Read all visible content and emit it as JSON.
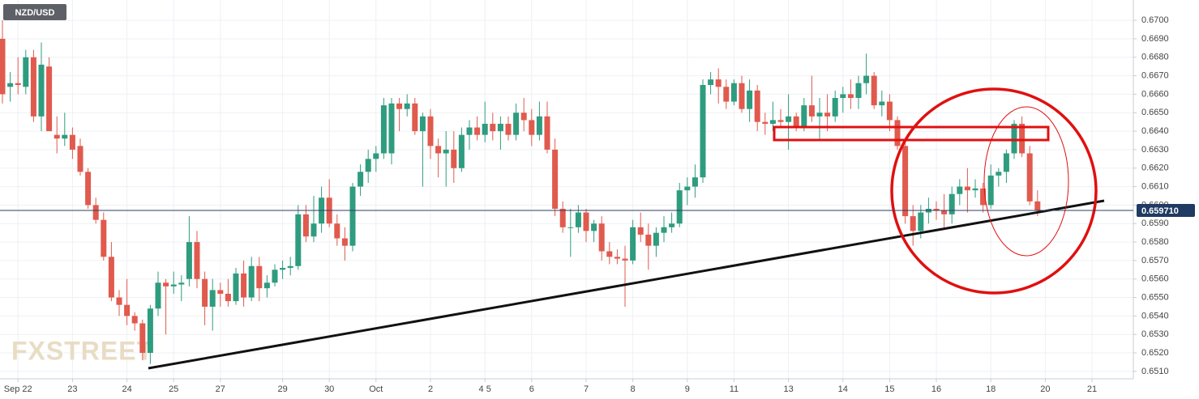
{
  "chart_data": {
    "type": "candlestick",
    "title": "NZD/USD",
    "watermark": "FXSTREET",
    "up_color": "#2f9c7f",
    "down_color": "#e05a4e",
    "grid": true,
    "ylim": [
      0.6506,
      0.6711
    ],
    "yticks": [
      {
        "value": 0.651,
        "label": "0.6510"
      },
      {
        "value": 0.652,
        "label": "0.6520"
      },
      {
        "value": 0.653,
        "label": "0.6530"
      },
      {
        "value": 0.654,
        "label": "0.6540"
      },
      {
        "value": 0.655,
        "label": "0.6550"
      },
      {
        "value": 0.656,
        "label": "0.6560"
      },
      {
        "value": 0.657,
        "label": "0.6570"
      },
      {
        "value": 0.658,
        "label": "0.6580"
      },
      {
        "value": 0.659,
        "label": "0.6590"
      },
      {
        "value": 0.66,
        "label": "0.6600"
      },
      {
        "value": 0.661,
        "label": "0.6610"
      },
      {
        "value": 0.662,
        "label": "0.6620"
      },
      {
        "value": 0.663,
        "label": "0.6630"
      },
      {
        "value": 0.664,
        "label": "0.6640"
      },
      {
        "value": 0.665,
        "label": "0.6650"
      },
      {
        "value": 0.666,
        "label": "0.6660"
      },
      {
        "value": 0.667,
        "label": "0.6670"
      },
      {
        "value": 0.668,
        "label": "0.6680"
      },
      {
        "value": 0.669,
        "label": "0.6690"
      },
      {
        "value": 0.67,
        "label": "0.6700"
      }
    ],
    "current_price": {
      "value": 0.65971,
      "label": "0.659710"
    },
    "categories": [
      null,
      null,
      "Sep 22",
      null,
      null,
      null,
      null,
      null,
      null,
      "23",
      null,
      null,
      null,
      null,
      null,
      null,
      "24",
      null,
      null,
      null,
      null,
      null,
      "25",
      null,
      null,
      null,
      null,
      null,
      "27",
      null,
      null,
      null,
      null,
      null,
      null,
      null,
      "29",
      null,
      null,
      null,
      null,
      null,
      "30",
      null,
      null,
      null,
      null,
      null,
      "Oct",
      null,
      null,
      null,
      null,
      null,
      null,
      "2",
      null,
      null,
      null,
      null,
      null,
      null,
      "4 5",
      null,
      null,
      null,
      null,
      null,
      "6",
      null,
      null,
      null,
      null,
      null,
      null,
      "7",
      null,
      null,
      null,
      null,
      null,
      "8",
      null,
      null,
      null,
      null,
      null,
      null,
      "9",
      null,
      null,
      null,
      null,
      null,
      "11",
      null,
      null,
      null,
      null,
      null,
      null,
      "13",
      null,
      null,
      null,
      null,
      null,
      null,
      "14",
      null,
      null,
      null,
      null,
      null,
      "15",
      null,
      null,
      null,
      null,
      null,
      "16",
      null,
      null,
      null,
      null,
      null,
      null,
      "18",
      null,
      null,
      null,
      null,
      null,
      null,
      "20",
      null,
      null,
      null,
      null,
      null,
      "21"
    ],
    "candles": [
      [
        0.669,
        0.67,
        0.6655,
        0.666
      ],
      [
        0.6664,
        0.6672,
        0.6656,
        0.6666
      ],
      [
        0.6666,
        0.668,
        0.666,
        0.6665
      ],
      [
        0.6664,
        0.6684,
        0.666,
        0.668
      ],
      [
        0.668,
        0.6684,
        0.6645,
        0.6648
      ],
      [
        0.6648,
        0.6688,
        0.664,
        0.6676
      ],
      [
        0.6675,
        0.668,
        0.664,
        0.664
      ],
      [
        0.6638,
        0.6648,
        0.6628,
        0.6636
      ],
      [
        0.6636,
        0.665,
        0.6632,
        0.6638
      ],
      [
        0.6638,
        0.6642,
        0.6625,
        0.663
      ],
      [
        0.6632,
        0.6636,
        0.6616,
        0.6618
      ],
      [
        0.6618,
        0.662,
        0.6598,
        0.66
      ],
      [
        0.66,
        0.6604,
        0.659,
        0.6592
      ],
      [
        0.6592,
        0.6596,
        0.657,
        0.6572
      ],
      [
        0.6572,
        0.658,
        0.6548,
        0.655
      ],
      [
        0.655,
        0.6554,
        0.654,
        0.6546
      ],
      [
        0.6546,
        0.656,
        0.6535,
        0.654
      ],
      [
        0.654,
        0.6542,
        0.6532,
        0.6536
      ],
      [
        0.6536,
        0.6538,
        0.6516,
        0.652
      ],
      [
        0.652,
        0.6546,
        0.6514,
        0.6544
      ],
      [
        0.6544,
        0.6564,
        0.654,
        0.6558
      ],
      [
        0.6558,
        0.656,
        0.653,
        0.6556
      ],
      [
        0.6556,
        0.6564,
        0.6552,
        0.6557
      ],
      [
        0.6557,
        0.6562,
        0.6548,
        0.6558
      ],
      [
        0.656,
        0.6594,
        0.6556,
        0.658
      ],
      [
        0.658,
        0.6586,
        0.6555,
        0.656
      ],
      [
        0.656,
        0.6564,
        0.6535,
        0.6545
      ],
      [
        0.6545,
        0.656,
        0.6532,
        0.6554
      ],
      [
        0.6554,
        0.6558,
        0.6545,
        0.6552
      ],
      [
        0.6552,
        0.656,
        0.6545,
        0.6548
      ],
      [
        0.6548,
        0.6566,
        0.6546,
        0.6563
      ],
      [
        0.6563,
        0.657,
        0.6545,
        0.655
      ],
      [
        0.655,
        0.6572,
        0.6548,
        0.6567
      ],
      [
        0.6567,
        0.6572,
        0.6548,
        0.6555
      ],
      [
        0.6555,
        0.6562,
        0.655,
        0.6558
      ],
      [
        0.6558,
        0.6568,
        0.6556,
        0.6565
      ],
      [
        0.6565,
        0.657,
        0.656,
        0.6566
      ],
      [
        0.6566,
        0.6572,
        0.6562,
        0.6567
      ],
      [
        0.6567,
        0.66,
        0.6565,
        0.6595
      ],
      [
        0.6595,
        0.66,
        0.658,
        0.6583
      ],
      [
        0.6583,
        0.6605,
        0.658,
        0.659
      ],
      [
        0.659,
        0.661,
        0.6585,
        0.6604
      ],
      [
        0.6604,
        0.6614,
        0.6588,
        0.659
      ],
      [
        0.659,
        0.6595,
        0.6578,
        0.6582
      ],
      [
        0.6582,
        0.6588,
        0.657,
        0.6578
      ],
      [
        0.6578,
        0.6612,
        0.6575,
        0.661
      ],
      [
        0.661,
        0.6622,
        0.6605,
        0.6618
      ],
      [
        0.6618,
        0.663,
        0.6612,
        0.6625
      ],
      [
        0.6625,
        0.6632,
        0.6618,
        0.6628
      ],
      [
        0.6628,
        0.6658,
        0.6625,
        0.6654
      ],
      [
        0.6628,
        0.6658,
        0.6622,
        0.6655
      ],
      [
        0.6655,
        0.6658,
        0.664,
        0.6652
      ],
      [
        0.6652,
        0.666,
        0.6648,
        0.6655
      ],
      [
        0.6655,
        0.6658,
        0.6638,
        0.664
      ],
      [
        0.664,
        0.665,
        0.661,
        0.6648
      ],
      [
        0.6648,
        0.6652,
        0.6625,
        0.6632
      ],
      [
        0.6632,
        0.6636,
        0.6615,
        0.6628
      ],
      [
        0.6628,
        0.664,
        0.661,
        0.663
      ],
      [
        0.663,
        0.664,
        0.6612,
        0.662
      ],
      [
        0.662,
        0.6642,
        0.6618,
        0.6638
      ],
      [
        0.6638,
        0.6646,
        0.663,
        0.6642
      ],
      [
        0.6642,
        0.6648,
        0.6635,
        0.6638
      ],
      [
        0.6638,
        0.6656,
        0.6634,
        0.6644
      ],
      [
        0.6644,
        0.665,
        0.6635,
        0.664
      ],
      [
        0.664,
        0.6648,
        0.663,
        0.6644
      ],
      [
        0.6644,
        0.6648,
        0.6635,
        0.6638
      ],
      [
        0.6638,
        0.6655,
        0.6635,
        0.665
      ],
      [
        0.665,
        0.6658,
        0.664,
        0.6646
      ],
      [
        0.6646,
        0.6652,
        0.6632,
        0.6638
      ],
      [
        0.6638,
        0.6656,
        0.6635,
        0.6648
      ],
      [
        0.6648,
        0.6656,
        0.6628,
        0.663
      ],
      [
        0.663,
        0.6636,
        0.6594,
        0.6598
      ],
      [
        0.6598,
        0.6602,
        0.6585,
        0.6588
      ],
      [
        0.6588,
        0.6598,
        0.6572,
        0.6588
      ],
      [
        0.6588,
        0.66,
        0.6585,
        0.6596
      ],
      [
        0.6596,
        0.6598,
        0.658,
        0.6586
      ],
      [
        0.6586,
        0.6592,
        0.658,
        0.659
      ],
      [
        0.659,
        0.6594,
        0.657,
        0.6575
      ],
      [
        0.6575,
        0.658,
        0.6568,
        0.6572
      ],
      [
        0.6572,
        0.6576,
        0.6568,
        0.6571
      ],
      [
        0.6571,
        0.6578,
        0.6545,
        0.657
      ],
      [
        0.657,
        0.6592,
        0.6568,
        0.6588
      ],
      [
        0.6588,
        0.6596,
        0.658,
        0.6584
      ],
      [
        0.6584,
        0.659,
        0.6565,
        0.6578
      ],
      [
        0.6578,
        0.6588,
        0.6572,
        0.6585
      ],
      [
        0.6585,
        0.6594,
        0.658,
        0.6588
      ],
      [
        0.6588,
        0.6596,
        0.6585,
        0.659
      ],
      [
        0.659,
        0.6612,
        0.6588,
        0.6608
      ],
      [
        0.6608,
        0.6615,
        0.66,
        0.661
      ],
      [
        0.661,
        0.6622,
        0.6604,
        0.6615
      ],
      [
        0.6615,
        0.6668,
        0.6612,
        0.6665
      ],
      [
        0.6665,
        0.6672,
        0.666,
        0.6668
      ],
      [
        0.6668,
        0.6674,
        0.6655,
        0.6664
      ],
      [
        0.6664,
        0.6668,
        0.6652,
        0.6656
      ],
      [
        0.6656,
        0.6668,
        0.6654,
        0.6666
      ],
      [
        0.6666,
        0.667,
        0.665,
        0.6652
      ],
      [
        0.6652,
        0.6668,
        0.6645,
        0.6662
      ],
      [
        0.6662,
        0.6665,
        0.664,
        0.6645
      ],
      [
        0.6645,
        0.665,
        0.6638,
        0.6644
      ],
      [
        0.6644,
        0.6656,
        0.664,
        0.6646
      ],
      [
        0.6646,
        0.6652,
        0.6642,
        0.6645
      ],
      [
        0.6645,
        0.666,
        0.663,
        0.6648
      ],
      [
        0.6648,
        0.665,
        0.664,
        0.6642
      ],
      [
        0.6642,
        0.6658,
        0.664,
        0.6654
      ],
      [
        0.6654,
        0.667,
        0.6645,
        0.6648
      ],
      [
        0.6648,
        0.6658,
        0.6635,
        0.665
      ],
      [
        0.665,
        0.666,
        0.664,
        0.6648
      ],
      [
        0.6648,
        0.6662,
        0.6645,
        0.6658
      ],
      [
        0.6658,
        0.6664,
        0.665,
        0.666
      ],
      [
        0.666,
        0.6668,
        0.6652,
        0.6658
      ],
      [
        0.6658,
        0.667,
        0.6652,
        0.6666
      ],
      [
        0.6666,
        0.6682,
        0.666,
        0.667
      ],
      [
        0.667,
        0.6672,
        0.6652,
        0.6654
      ],
      [
        0.6654,
        0.6662,
        0.6648,
        0.6656
      ],
      [
        0.6656,
        0.666,
        0.664,
        0.6646
      ],
      [
        0.6646,
        0.6648,
        0.663,
        0.6632
      ],
      [
        0.6632,
        0.6636,
        0.659,
        0.6594
      ],
      [
        0.6594,
        0.66,
        0.6578,
        0.6586
      ],
      [
        0.6586,
        0.66,
        0.6582,
        0.6596
      ],
      [
        0.6596,
        0.6604,
        0.659,
        0.6598
      ],
      [
        0.6598,
        0.6602,
        0.6592,
        0.6597
      ],
      [
        0.6597,
        0.6606,
        0.6588,
        0.6595
      ],
      [
        0.6595,
        0.661,
        0.659,
        0.6606
      ],
      [
        0.6606,
        0.6614,
        0.66,
        0.661
      ],
      [
        0.661,
        0.662,
        0.6596,
        0.6608
      ],
      [
        0.6608,
        0.6614,
        0.6604,
        0.6609
      ],
      [
        0.6609,
        0.6612,
        0.6596,
        0.66
      ],
      [
        0.66,
        0.6622,
        0.6598,
        0.6616
      ],
      [
        0.6616,
        0.662,
        0.661,
        0.6618
      ],
      [
        0.6618,
        0.663,
        0.6612,
        0.6628
      ],
      [
        0.6628,
        0.6646,
        0.6625,
        0.6644
      ],
      [
        0.6644,
        0.6648,
        0.6626,
        0.6628
      ],
      [
        0.6628,
        0.6632,
        0.66,
        0.6602
      ],
      [
        0.6602,
        0.6608,
        0.6594,
        0.6597
      ],
      null,
      null,
      null,
      null,
      null,
      null,
      null
    ]
  }
}
